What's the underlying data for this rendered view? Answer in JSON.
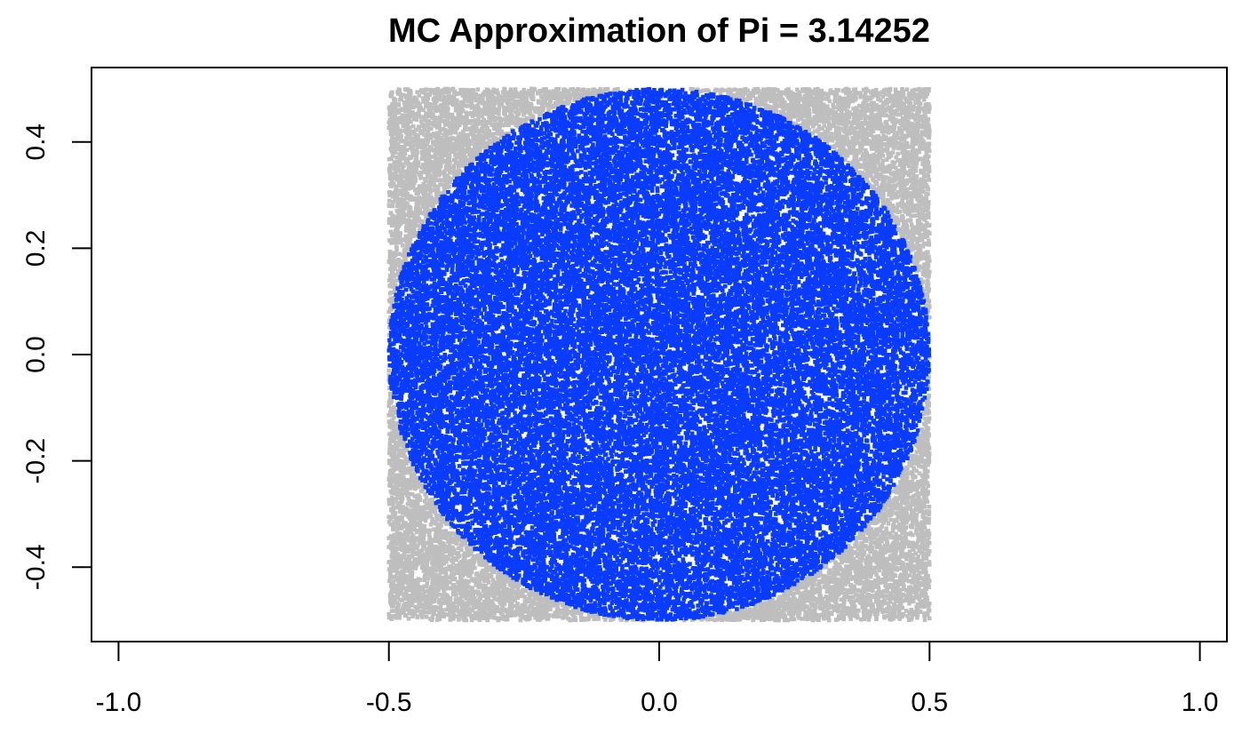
{
  "chart_data": {
    "type": "scatter",
    "title": "MC Approximation of Pi = 3.14252",
    "xlabel": "",
    "ylabel": "",
    "xlim": [
      -1.05,
      1.05
    ],
    "ylim": [
      -0.54,
      0.54
    ],
    "x_ticks": [
      -1.0,
      -0.5,
      0.0,
      0.5,
      1.0
    ],
    "x_tick_labels": [
      "-1.0",
      "-0.5",
      "0.0",
      "0.5",
      "1.0"
    ],
    "y_ticks": [
      -0.4,
      -0.2,
      0.0,
      0.2,
      0.4
    ],
    "y_tick_labels": [
      "-0.4",
      "-0.2",
      "0.0",
      "0.2",
      "0.4"
    ],
    "sampling_region": {
      "x": [
        -0.5,
        0.5
      ],
      "y": [
        -0.5,
        0.5
      ]
    },
    "circle": {
      "center": [
        0.0,
        0.0
      ],
      "radius": 0.5
    },
    "series": [
      {
        "color": "#bebebe",
        "region": "outside circle"
      },
      {
        "color": "#0a3cff",
        "region": "inside circle"
      }
    ],
    "grid": false,
    "legend": "none"
  }
}
